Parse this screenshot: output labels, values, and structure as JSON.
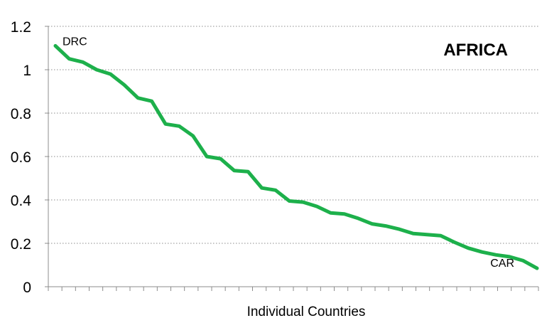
{
  "chart_data": {
    "type": "line",
    "title": "AFRICA",
    "xlabel": "Individual Countries",
    "ylabel": "",
    "ylim": [
      0,
      1.2
    ],
    "yticks": [
      0,
      0.2,
      0.4,
      0.6,
      0.8,
      1,
      1.2
    ],
    "ytick_labels": [
      "0",
      "0.2",
      "0.4",
      "0.6",
      "0.8",
      "1",
      "1.2"
    ],
    "grid": "horizontal-dotted",
    "series": [
      {
        "color": "#1db04b",
        "values": [
          1.11,
          1.05,
          1.035,
          1.0,
          0.98,
          0.93,
          0.87,
          0.855,
          0.75,
          0.74,
          0.695,
          0.6,
          0.59,
          0.535,
          0.53,
          0.455,
          0.445,
          0.395,
          0.39,
          0.37,
          0.34,
          0.335,
          0.315,
          0.29,
          0.28,
          0.265,
          0.245,
          0.24,
          0.235,
          0.205,
          0.178,
          0.16,
          0.147,
          0.138,
          0.12,
          0.085
        ]
      }
    ],
    "annotations": [
      {
        "text": "DRC",
        "point_index": 0
      },
      {
        "text": "CAR",
        "point_index": 35
      }
    ]
  },
  "colors": {
    "line": "#1db04b",
    "axis": "#8c8c8c",
    "grid": "#8c8c8c",
    "text": "#000000"
  }
}
